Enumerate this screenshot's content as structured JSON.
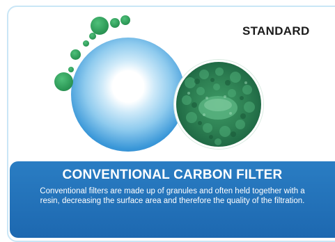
{
  "badge": "STANDARD",
  "footer": {
    "title": "CONVENTIONAL CARBON FILTER",
    "description": "Conventional filters are made up of granules and often held together with a resin, decreasing the surface area and therefore the quality of the filtration."
  },
  "colors": {
    "border": "#c9e6f6",
    "footer_bg": "#1d68b0",
    "circle_blue": "#3a97d8",
    "granule_green": "#2e9a58"
  },
  "icons": [
    "filter-circle",
    "carbon-granules-image",
    "granule-dots"
  ]
}
